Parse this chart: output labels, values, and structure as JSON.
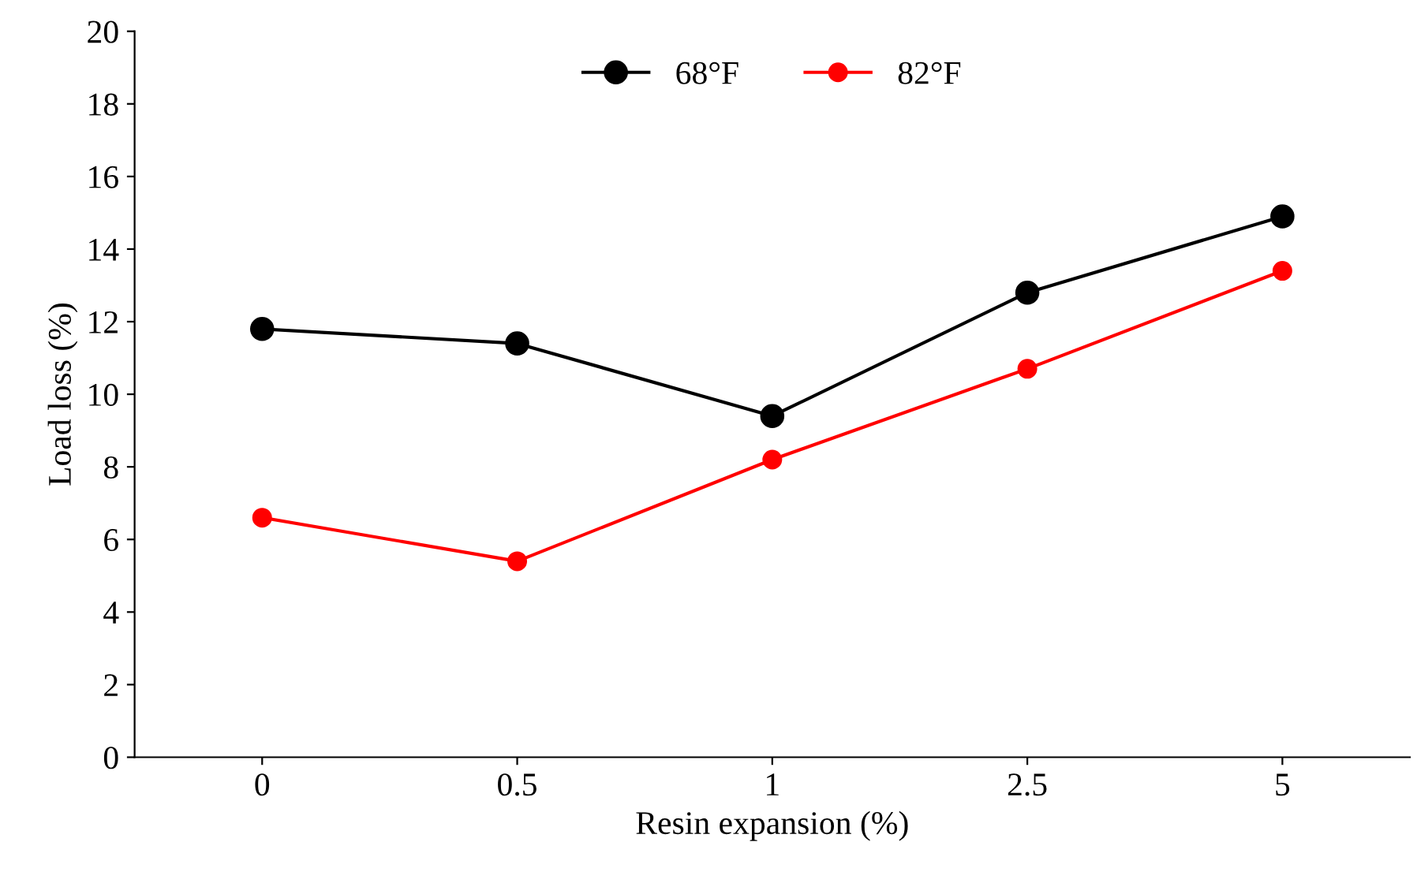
{
  "chart_data": {
    "type": "line",
    "xlabel": "Resin expansion (%)",
    "ylabel": "Load loss (%)",
    "categories": [
      "0",
      "0.5",
      "1",
      "2.5",
      "5"
    ],
    "series": [
      {
        "name": "68°F",
        "color": "#000000",
        "values": [
          11.8,
          11.4,
          9.4,
          12.8,
          14.9
        ]
      },
      {
        "name": "82°F",
        "color": "#ff0000",
        "values": [
          6.6,
          5.4,
          8.2,
          10.7,
          13.4
        ]
      }
    ],
    "ylim": [
      0,
      20
    ],
    "yticks": [
      0,
      2,
      4,
      6,
      8,
      10,
      12,
      14,
      16,
      18,
      20
    ],
    "grid": false,
    "legend": "top",
    "marker": "circle",
    "line_style": "solid"
  }
}
